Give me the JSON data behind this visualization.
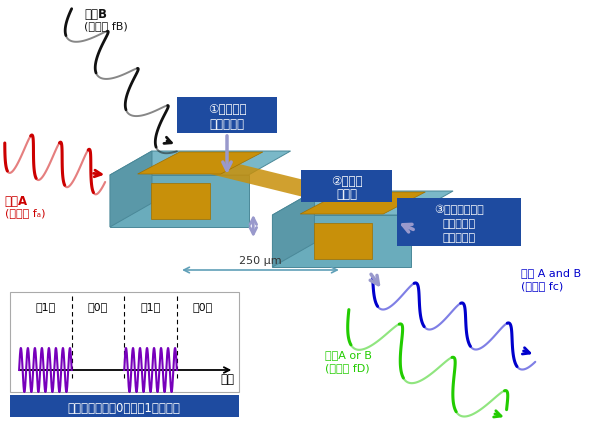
{
  "bg_color": "#ffffff",
  "fig_width": 5.89,
  "fig_height": 4.37,
  "dpi": 100,
  "wave_red_label_1": "入力A",
  "wave_red_label_2": "(周波数 fₐ)",
  "wave_black_label_1": "入力B",
  "wave_black_label_2": "(周波数 fB)",
  "label1_line1": "①電気信号",
  "label1_line2": "として入力",
  "label2_line1": "②板ばね",
  "label2_line2": "が振動",
  "label3_line1": "③異なる周波数",
  "label3_line2": "の電気信号",
  "label3_line3": "として出力",
  "label_250": "250 μm",
  "label_out_ab_1": "出力 A and B",
  "label_out_ab_2": "(周波数 fᴄ)",
  "label_out_aorb_1": "出力A or B",
  "label_out_aorb_2": "(周波数 fD)",
  "label_time_axis": "時間",
  "bit_labels": [
    "「1」",
    "「0」",
    "「1」",
    "「0」"
  ],
  "bottom_label": "振動の有無で「0」、「1」を表現",
  "label1_bg": "#1e4ba0",
  "label2_bg": "#1e4ba0",
  "label3_bg": "#1e4ba0",
  "bottom_label_bg": "#1e4ba0",
  "arrow_color": "#9999cc",
  "red_wave_color": "#cc0000",
  "black_wave_color": "#111111",
  "purple_wave_color": "#7700bb",
  "green_wave_color": "#22cc00",
  "blue_wave_color": "#0000cc",
  "block_top": "#7ab8c8",
  "block_side_l": "#5a98a8",
  "block_side_r": "#6aacbc",
  "block_edge": "#4a8898",
  "gold_color": "#c8900a",
  "gold_edge": "#a07000"
}
